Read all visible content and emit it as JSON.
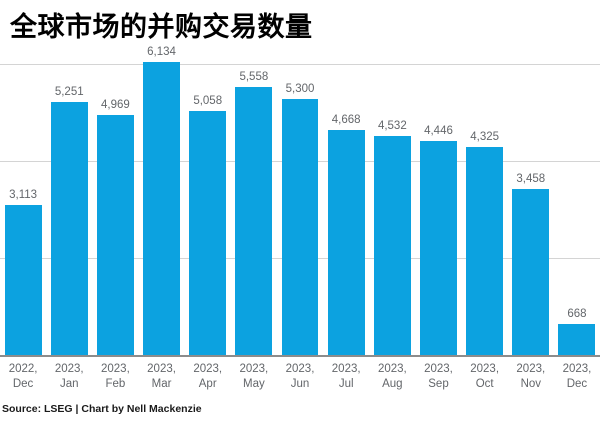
{
  "title": "全球市场的并购交易数量",
  "source": "Source: LSEG | Chart by Nell Mackenzie",
  "chart_data": {
    "type": "bar",
    "title": "全球市场的并购交易数量",
    "categories": [
      "2022, Dec",
      "2023, Jan",
      "2023, Feb",
      "2023, Mar",
      "2023, Apr",
      "2023, May",
      "2023, Jun",
      "2023, Jul",
      "2023, Aug",
      "2023, Sep",
      "2023, Oct",
      "2023, Nov",
      "2023, Dec"
    ],
    "category_lines": [
      [
        "2022,",
        "Dec"
      ],
      [
        "2023,",
        "Jan"
      ],
      [
        "2023,",
        "Feb"
      ],
      [
        "2023,",
        "Mar"
      ],
      [
        "2023,",
        "Apr"
      ],
      [
        "2023,",
        "May"
      ],
      [
        "2023,",
        "Jun"
      ],
      [
        "2023,",
        "Jul"
      ],
      [
        "2023,",
        "Aug"
      ],
      [
        "2023,",
        "Sep"
      ],
      [
        "2023,",
        "Oct"
      ],
      [
        "2023,",
        "Nov"
      ],
      [
        "2023,",
        "Dec"
      ]
    ],
    "values": [
      3113,
      5251,
      4969,
      6134,
      5058,
      5558,
      5300,
      4668,
      4532,
      4446,
      4325,
      3458,
      668
    ],
    "value_labels": [
      "3,113",
      "5,251",
      "4,969",
      "6,134",
      "5,058",
      "5,558",
      "5,300",
      "4,668",
      "4,532",
      "4,446",
      "4,325",
      "3,458",
      "668"
    ],
    "xlabel": "",
    "ylabel": "",
    "ylim": [
      0,
      6400
    ],
    "gridlines": [
      2000,
      4000,
      6000
    ],
    "grid": "horizontal-only",
    "legend": "none",
    "y_axis_tick_labels": "none",
    "bar_color": "#0ca2e0",
    "value_label_color": "#63666a",
    "axis_label_color": "#63666a",
    "gridline_color": "#d4d4d4",
    "axis_line_color": "#8c8c8c",
    "title_color": "#000000"
  }
}
